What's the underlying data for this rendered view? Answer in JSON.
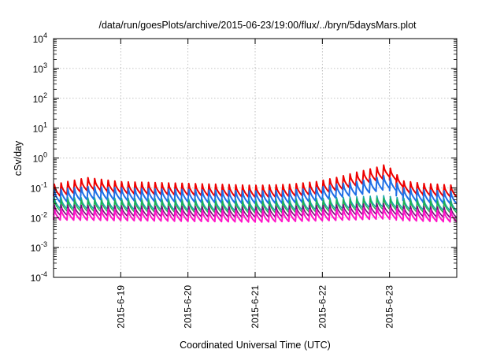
{
  "chart_data": {
    "type": "line",
    "title": "/data/run/goesPlots/archive/2015-06-23/19:00/flux/../bryn/5daysMars.plot",
    "xlabel": "Coordinated Universal Time (UTC)",
    "ylabel": "cSv/day",
    "yscale": "log",
    "ylim": [
      0.0001,
      10000
    ],
    "y_ticks": [
      {
        "value": 0.0001,
        "base": "10",
        "exp": "-4"
      },
      {
        "value": 0.001,
        "base": "10",
        "exp": "-3"
      },
      {
        "value": 0.01,
        "base": "10",
        "exp": "-2"
      },
      {
        "value": 0.1,
        "base": "10",
        "exp": "-1"
      },
      {
        "value": 1,
        "base": "10",
        "exp": "0"
      },
      {
        "value": 10,
        "base": "10",
        "exp": "1"
      },
      {
        "value": 100,
        "base": "10",
        "exp": "2"
      },
      {
        "value": 1000,
        "base": "10",
        "exp": "3"
      },
      {
        "value": 10000,
        "base": "10",
        "exp": "4"
      }
    ],
    "x_unit": "days",
    "xlim": [
      0,
      6
    ],
    "x_ticks": [
      {
        "value": 1,
        "label": "2015-6-19"
      },
      {
        "value": 2,
        "label": "2015-6-20"
      },
      {
        "value": 3,
        "label": "2015-6-21"
      },
      {
        "value": 4,
        "label": "2015-6-22"
      },
      {
        "value": 5,
        "label": "2015-6-23"
      }
    ],
    "grid": true,
    "pulse_period_days": 0.1,
    "series": [
      {
        "color": "#ee0000",
        "width": 2.0,
        "envelope": [
          [
            0,
            0.13
          ],
          [
            0.5,
            0.22
          ],
          [
            1,
            0.16
          ],
          [
            1.5,
            0.15
          ],
          [
            2,
            0.14
          ],
          [
            2.5,
            0.13
          ],
          [
            3,
            0.12
          ],
          [
            3.5,
            0.13
          ],
          [
            3.9,
            0.16
          ],
          [
            4.2,
            0.22
          ],
          [
            4.5,
            0.33
          ],
          [
            4.8,
            0.48
          ],
          [
            4.95,
            0.62
          ],
          [
            5.2,
            0.17
          ],
          [
            5.5,
            0.14
          ],
          [
            6,
            0.12
          ]
        ],
        "floor_ratio": 0.4
      },
      {
        "color": "#1f6fe6",
        "width": 2.0,
        "envelope": [
          [
            0,
            0.085
          ],
          [
            0.5,
            0.11
          ],
          [
            1,
            0.1
          ],
          [
            1.5,
            0.092
          ],
          [
            2,
            0.088
          ],
          [
            2.5,
            0.082
          ],
          [
            3,
            0.078
          ],
          [
            3.5,
            0.082
          ],
          [
            3.9,
            0.1
          ],
          [
            4.2,
            0.13
          ],
          [
            4.5,
            0.16
          ],
          [
            4.8,
            0.22
          ],
          [
            4.95,
            0.27
          ],
          [
            5.2,
            0.1
          ],
          [
            5.5,
            0.085
          ],
          [
            6,
            0.075
          ]
        ],
        "floor_ratio": 0.38
      },
      {
        "color": "#19a8a8",
        "width": 1.6,
        "envelope": [
          [
            0,
            0.048
          ],
          [
            1,
            0.045
          ],
          [
            2,
            0.042
          ],
          [
            3,
            0.04
          ],
          [
            4,
            0.045
          ],
          [
            4.9,
            0.055
          ],
          [
            5.2,
            0.045
          ],
          [
            6,
            0.04
          ]
        ],
        "floor_ratio": 0.42
      },
      {
        "color": "#22b24c",
        "width": 1.4,
        "envelope": [
          [
            0,
            0.04
          ],
          [
            1,
            0.038
          ],
          [
            2,
            0.036
          ],
          [
            3,
            0.034
          ],
          [
            4,
            0.038
          ],
          [
            4.9,
            0.046
          ],
          [
            5.2,
            0.038
          ],
          [
            6,
            0.034
          ]
        ],
        "floor_ratio": 0.42
      },
      {
        "color": "#7a0a7a",
        "width": 1.6,
        "envelope": [
          [
            0,
            0.027
          ],
          [
            1,
            0.025
          ],
          [
            2,
            0.024
          ],
          [
            3,
            0.023
          ],
          [
            4,
            0.026
          ],
          [
            4.9,
            0.03
          ],
          [
            5.2,
            0.025
          ],
          [
            6,
            0.022
          ]
        ],
        "floor_ratio": 0.45
      },
      {
        "color": "#ff14c8",
        "width": 2.0,
        "envelope": [
          [
            0,
            0.02
          ],
          [
            1,
            0.019
          ],
          [
            2,
            0.018
          ],
          [
            3,
            0.017
          ],
          [
            4,
            0.019
          ],
          [
            4.9,
            0.022
          ],
          [
            5.2,
            0.019
          ],
          [
            6,
            0.017
          ]
        ],
        "floor_ratio": 0.42
      }
    ]
  }
}
